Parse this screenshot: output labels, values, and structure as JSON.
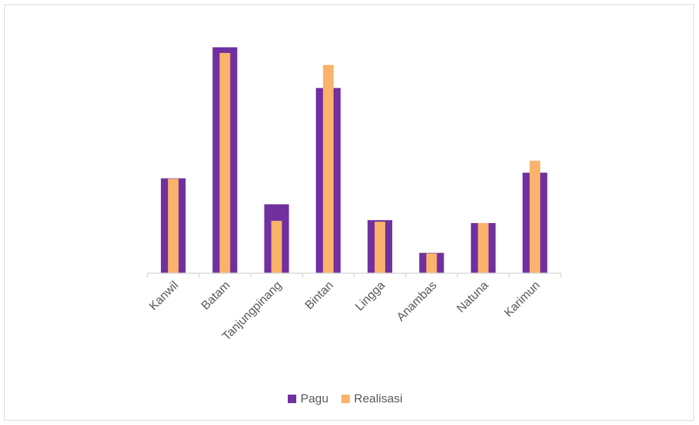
{
  "chart_data": {
    "type": "bar",
    "categories": [
      "Kanwil",
      "Batam",
      "Tanjungpinang",
      "Bintan",
      "Lingga",
      "Anambas",
      "Natuna",
      "Karimun"
    ],
    "series": [
      {
        "name": "Pagu",
        "color": "#7030a0",
        "values": [
          42,
          100,
          30.5,
          82,
          23.5,
          9,
          22.2,
          44.5
        ]
      },
      {
        "name": "Realisasi",
        "color": "#fbb26a",
        "values": [
          41.8,
          97.5,
          23.2,
          92.2,
          22.8,
          8.8,
          22.2,
          49.8
        ]
      }
    ],
    "ylim": [
      0,
      100
    ],
    "grid": false,
    "legend_position": "bottom"
  }
}
